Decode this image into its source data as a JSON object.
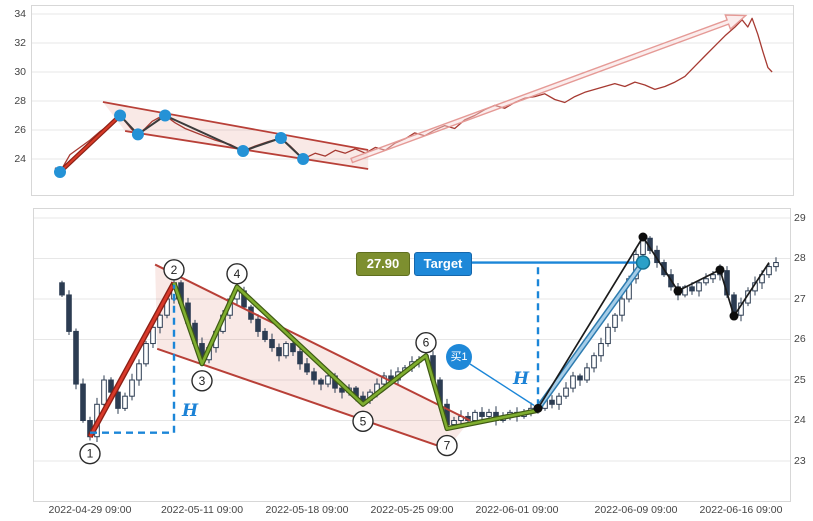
{
  "chart_data": [
    {
      "id": "context-line-chart",
      "type": "line",
      "title": "",
      "xlabel": "",
      "ylabel": "",
      "ylim": [
        22.5,
        34.6
      ],
      "yticks": [
        24,
        26,
        28,
        30,
        32,
        34
      ],
      "grid": true,
      "line_color": "#a63a32",
      "points": [
        [
          0,
          23.4
        ],
        [
          0.7,
          23.1
        ],
        [
          2.1,
          24.3
        ],
        [
          3.5,
          24.8
        ],
        [
          4.9,
          25.3
        ],
        [
          6.3,
          25.9
        ],
        [
          7.7,
          26.4
        ],
        [
          9.1,
          27.0
        ],
        [
          9.8,
          26.6
        ],
        [
          10.8,
          26.0
        ],
        [
          11.6,
          25.7
        ],
        [
          12.6,
          26.1
        ],
        [
          13.6,
          26.6
        ],
        [
          14.7,
          26.9
        ],
        [
          15.4,
          27.0
        ],
        [
          16.8,
          26.5
        ],
        [
          18.2,
          26.1
        ],
        [
          20.3,
          25.7
        ],
        [
          22.4,
          25.3
        ],
        [
          24.5,
          25.0
        ],
        [
          26.3,
          24.55
        ],
        [
          28,
          24.9
        ],
        [
          29.8,
          25.2
        ],
        [
          31.6,
          25.45
        ],
        [
          32.9,
          24.9
        ],
        [
          34.7,
          24.0
        ],
        [
          36.4,
          24.4
        ],
        [
          37.8,
          24.2
        ],
        [
          39.2,
          24.6
        ],
        [
          40.6,
          24.4
        ],
        [
          42,
          24.7
        ],
        [
          43.4,
          24.4
        ],
        [
          44.8,
          24.8
        ],
        [
          46.2,
          24.6
        ],
        [
          47.6,
          25.1
        ],
        [
          49,
          25.4
        ],
        [
          50.3,
          25.8
        ],
        [
          51.7,
          25.6
        ],
        [
          53.1,
          26.0
        ],
        [
          54.5,
          26.3
        ],
        [
          55.9,
          26.1
        ],
        [
          57.3,
          26.7
        ],
        [
          58.7,
          27.0
        ],
        [
          60.1,
          27.4
        ],
        [
          61.5,
          27.7
        ],
        [
          62.9,
          27.5
        ],
        [
          64.3,
          27.9
        ],
        [
          65.7,
          28.2
        ],
        [
          67.1,
          28.3
        ],
        [
          68.5,
          28.5
        ],
        [
          69.9,
          28.1
        ],
        [
          71.3,
          27.9
        ],
        [
          72.7,
          28.3
        ],
        [
          74.1,
          28.6
        ],
        [
          75.5,
          28.8
        ],
        [
          76.9,
          29.0
        ],
        [
          78.3,
          29.2
        ],
        [
          79.7,
          29.0
        ],
        [
          81.1,
          29.3
        ],
        [
          82.5,
          29.1
        ],
        [
          83.9,
          28.8
        ],
        [
          85.3,
          29.0
        ],
        [
          86.7,
          29.3
        ],
        [
          88.1,
          29.7
        ],
        [
          89.5,
          30.4
        ],
        [
          90.9,
          31.1
        ],
        [
          92.3,
          31.8
        ],
        [
          93.7,
          32.5
        ],
        [
          95.1,
          33.1
        ],
        [
          96.1,
          33.6
        ],
        [
          96.9,
          33.1
        ],
        [
          97.5,
          33.7
        ],
        [
          98.3,
          32.6
        ],
        [
          99,
          31.4
        ],
        [
          99.7,
          30.3
        ],
        [
          100.3,
          30.0
        ]
      ],
      "pattern": {
        "dot_color": "#2492d6",
        "dots": [
          [
            0.7,
            23.1
          ],
          [
            9.1,
            27.0
          ],
          [
            11.6,
            25.7
          ],
          [
            15.4,
            27.0
          ],
          [
            26.3,
            24.55
          ],
          [
            31.6,
            25.45
          ],
          [
            34.7,
            24.0
          ]
        ],
        "pole": [
          [
            0.7,
            23.1
          ],
          [
            9.1,
            27.0
          ]
        ],
        "pole_colors": [
          "#8b1f15",
          "#d63a27"
        ],
        "zigzag": [
          [
            9.1,
            27.0
          ],
          [
            11.6,
            25.7
          ],
          [
            15.4,
            27.0
          ],
          [
            26.3,
            24.55
          ],
          [
            31.6,
            25.45
          ],
          [
            34.7,
            24.0
          ]
        ],
        "zigzag_color": "#3c3c3c",
        "channel": {
          "upper": [
            [
              6.7,
              27.93
            ],
            [
              43.8,
              24.62
            ]
          ],
          "lower": [
            [
              9.8,
              25.93
            ],
            [
              43.8,
              23.31
            ]
          ],
          "line_color": "#b84038",
          "fill_color": "rgba(205,85,65,0.13)"
        },
        "arrow": {
          "from": [
            41.5,
            23.9
          ],
          "to": [
            96.6,
            33.9
          ],
          "color": "#e59a96",
          "fill": "rgba(246,214,214,0.45)"
        }
      }
    },
    {
      "id": "candlestick-chart",
      "type": "candlestick",
      "title": "",
      "ylim": [
        22.0,
        29.2
      ],
      "yticks": [
        23,
        24,
        25,
        26,
        27,
        28,
        29
      ],
      "grid": true,
      "xticks": [
        {
          "i": 4,
          "label": "2022-04-29 09:00"
        },
        {
          "i": 20,
          "label": "2022-05-11 09:00"
        },
        {
          "i": 35,
          "label": "2022-05-18 09:00"
        },
        {
          "i": 50,
          "label": "2022-05-25 09:00"
        },
        {
          "i": 65,
          "label": "2022-06-01 09:00"
        },
        {
          "i": 82,
          "label": "2022-06-09 09:00"
        },
        {
          "i": 97,
          "label": "2022-06-16 09:00"
        }
      ],
      "first_open": 27.4,
      "closes": [
        27.1,
        26.2,
        24.9,
        24.0,
        23.6,
        24.4,
        25.0,
        24.7,
        24.3,
        24.6,
        25.0,
        25.4,
        25.9,
        26.3,
        26.6,
        27.0,
        27.4,
        26.9,
        26.4,
        25.9,
        25.5,
        25.8,
        26.2,
        26.6,
        27.0,
        27.2,
        26.8,
        26.5,
        26.2,
        26.0,
        25.8,
        25.6,
        25.9,
        25.7,
        25.4,
        25.2,
        25.0,
        24.9,
        25.1,
        24.8,
        24.7,
        24.8,
        24.6,
        24.5,
        24.7,
        24.9,
        25.1,
        25.0,
        25.2,
        25.3,
        25.45,
        25.5,
        25.6,
        25.0,
        24.4,
        23.9,
        24.0,
        24.1,
        24.0,
        24.2,
        24.1,
        24.2,
        24.0,
        24.1,
        24.2,
        24.1,
        24.2,
        24.3,
        24.3,
        24.5,
        24.4,
        24.6,
        24.8,
        25.1,
        25.0,
        25.3,
        25.6,
        25.9,
        26.3,
        26.6,
        27.0,
        27.5,
        28.1,
        28.5,
        28.2,
        27.9,
        27.6,
        27.3,
        27.1,
        27.3,
        27.2,
        27.4,
        27.5,
        27.6,
        27.7,
        27.1,
        26.6,
        26.9,
        27.2,
        27.4,
        27.6,
        27.8,
        27.9
      ],
      "candle_colors": {
        "outline": "#2c3c52",
        "up_fill": "#ffffff",
        "down_fill": "#2c3c52"
      },
      "annotations": {
        "points": [
          {
            "n": "1",
            "i": 4,
            "price": 23.6,
            "side": "below"
          },
          {
            "n": "2",
            "i": 16,
            "price": 27.4,
            "side": "above"
          },
          {
            "n": "3",
            "i": 20,
            "price": 25.4,
            "side": "below"
          },
          {
            "n": "4",
            "i": 25,
            "price": 27.3,
            "side": "above"
          },
          {
            "n": "5",
            "i": 43,
            "price": 24.4,
            "side": "below"
          },
          {
            "n": "6",
            "i": 52,
            "price": 25.6,
            "side": "above"
          },
          {
            "n": "7",
            "i": 55,
            "price": 23.8,
            "side": "below"
          }
        ],
        "pole_colors": [
          "#8b1f15",
          "#d9392a"
        ],
        "zigzag_colors": [
          "#3f5a14",
          "#7fae2f"
        ],
        "zigzag_extra": [
          [
            68,
            24.25
          ]
        ],
        "channel": {
          "upper": [
            [
              13.3,
              27.85
            ],
            [
              58.3,
              24.0
            ]
          ],
          "lower": [
            [
              13.6,
              25.77
            ],
            [
              55,
              23.3
            ]
          ],
          "line_color": "#b84038",
          "fill_color": "rgba(205,85,65,0.13)"
        },
        "measure_color": "#1b86d8",
        "measure1": {
          "path": [
            [
              4,
              23.7
            ],
            [
              16,
              23.7
            ],
            [
              16,
              27.35
            ]
          ]
        },
        "measure2": {
          "path": [
            [
              68,
              24.35
            ],
            [
              68,
              27.9
            ]
          ]
        },
        "h_label": "H",
        "target_price_label": "27.90",
        "target_label": "Target",
        "buy_label": "买1",
        "target_line_price": 27.9,
        "buy_point": {
          "i": 68,
          "price": 24.3
        },
        "target_point": {
          "i": 83,
          "price": 27.9
        },
        "target_dot_color": "#2aa0c8",
        "projection_colors": [
          "#2e7cb0",
          "#a5cde8"
        ],
        "actual_path": [
          [
            68,
            24.3
          ],
          [
            83,
            28.53
          ],
          [
            88,
            27.2
          ],
          [
            94,
            27.72
          ],
          [
            96,
            26.58
          ],
          [
            101,
            27.9
          ]
        ],
        "path_color": "#1b1b1b",
        "path_dot_color": "#0d0d0d"
      }
    }
  ]
}
